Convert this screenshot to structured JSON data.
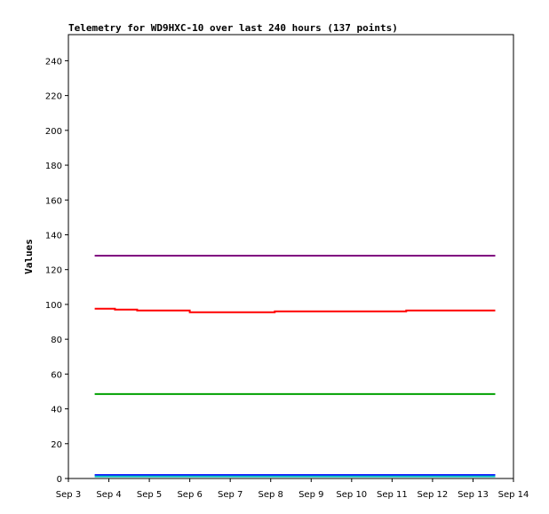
{
  "chart_data": {
    "type": "line",
    "title": "Telemetry for WD9HXC-10 over last 240 hours (137 points)",
    "xlabel": "",
    "ylabel": "Values",
    "ylim": [
      0,
      255
    ],
    "y_ticks": [
      0,
      20,
      40,
      60,
      80,
      100,
      120,
      140,
      160,
      180,
      200,
      220,
      240
    ],
    "x_ticks": [
      "Sep 3",
      "Sep 4",
      "Sep 5",
      "Sep 6",
      "Sep 7",
      "Sep 8",
      "Sep 9",
      "Sep 10",
      "Sep 11",
      "Sep 12",
      "Sep 13",
      "Sep 14"
    ],
    "x_range_days": [
      3,
      14
    ],
    "grid": false,
    "series": [
      {
        "color": "#800080",
        "points": [
          [
            3.65,
            128
          ],
          [
            13.55,
            128
          ]
        ]
      },
      {
        "color": "#ff0000",
        "points": [
          [
            3.65,
            97.5
          ],
          [
            4.15,
            97.5
          ],
          [
            4.15,
            97
          ],
          [
            4.7,
            97
          ],
          [
            4.7,
            96.5
          ],
          [
            6.0,
            96.5
          ],
          [
            6.0,
            95.5
          ],
          [
            8.1,
            95.5
          ],
          [
            8.1,
            96
          ],
          [
            11.35,
            96
          ],
          [
            11.35,
            96.5
          ],
          [
            13.55,
            96.5
          ]
        ]
      },
      {
        "color": "#00a000",
        "points": [
          [
            3.65,
            48.5
          ],
          [
            13.55,
            48.5
          ]
        ]
      },
      {
        "color": "#0000ff",
        "points": [
          [
            3.65,
            2
          ],
          [
            13.55,
            2
          ]
        ]
      },
      {
        "color": "#00bfbf",
        "points": [
          [
            3.65,
            1.2
          ],
          [
            13.55,
            1.2
          ]
        ]
      }
    ]
  }
}
